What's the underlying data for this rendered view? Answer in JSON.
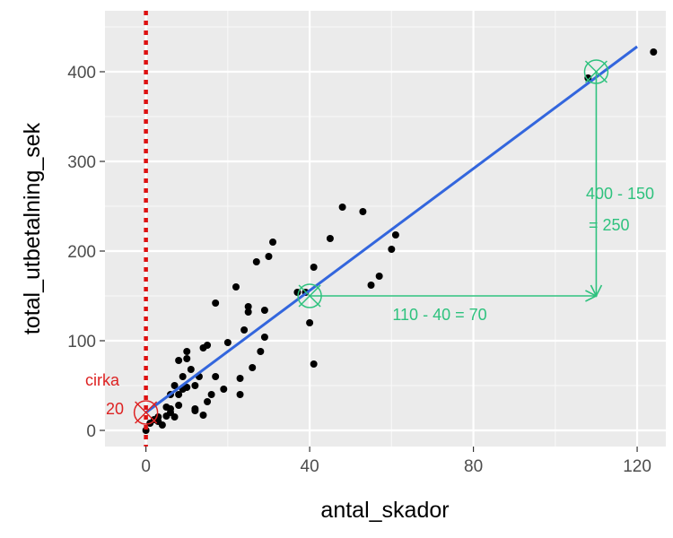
{
  "chart_data": {
    "type": "scatter",
    "xlabel": "antal_skador",
    "ylabel": "total_utbetalning_sek",
    "xlim": [
      -10,
      127
    ],
    "ylim": [
      -18,
      468
    ],
    "x_ticks": [
      0,
      40,
      80,
      120
    ],
    "x_tick_labels": [
      "0",
      "40",
      "80",
      "120"
    ],
    "y_ticks": [
      0,
      100,
      200,
      300,
      400
    ],
    "y_tick_labels": [
      "0",
      "100",
      "200",
      "300",
      "400"
    ],
    "background": "#ebebeb",
    "grid": true,
    "legend": "none",
    "points": [
      [
        0,
        0
      ],
      [
        1,
        8
      ],
      [
        2,
        12
      ],
      [
        3,
        10
      ],
      [
        3,
        15
      ],
      [
        4,
        6
      ],
      [
        5,
        16
      ],
      [
        5,
        26
      ],
      [
        6,
        20
      ],
      [
        6,
        24
      ],
      [
        6,
        40
      ],
      [
        7,
        15
      ],
      [
        7,
        50
      ],
      [
        8,
        28
      ],
      [
        8,
        40
      ],
      [
        8,
        78
      ],
      [
        9,
        46
      ],
      [
        9,
        60
      ],
      [
        10,
        48
      ],
      [
        10,
        80
      ],
      [
        10,
        88
      ],
      [
        11,
        68
      ],
      [
        12,
        22
      ],
      [
        12,
        24
      ],
      [
        12,
        50
      ],
      [
        13,
        60
      ],
      [
        14,
        92
      ],
      [
        14,
        17
      ],
      [
        15,
        32
      ],
      [
        15,
        95
      ],
      [
        16,
        40
      ],
      [
        17,
        60
      ],
      [
        17,
        142
      ],
      [
        19,
        46
      ],
      [
        20,
        98
      ],
      [
        22,
        160
      ],
      [
        23,
        40
      ],
      [
        23,
        58
      ],
      [
        24,
        112
      ],
      [
        25,
        132
      ],
      [
        25,
        138
      ],
      [
        26,
        70
      ],
      [
        27,
        188
      ],
      [
        28,
        88
      ],
      [
        29,
        104
      ],
      [
        29,
        134
      ],
      [
        30,
        194
      ],
      [
        31,
        210
      ],
      [
        37,
        154
      ],
      [
        39,
        154
      ],
      [
        40,
        120
      ],
      [
        41,
        74
      ],
      [
        41,
        182
      ],
      [
        45,
        214
      ],
      [
        48,
        249
      ],
      [
        53,
        244
      ],
      [
        55,
        162
      ],
      [
        57,
        172
      ],
      [
        60,
        202
      ],
      [
        61,
        218
      ],
      [
        108,
        393
      ],
      [
        124,
        422
      ]
    ],
    "regression_line": {
      "intercept": 20,
      "slope": 3.4,
      "x_range": [
        0,
        120
      ],
      "color": "#3366dd"
    },
    "vertical_reference": {
      "x": 0,
      "color": "#dd1111",
      "style": "dotted"
    },
    "markers": [
      {
        "x": 0,
        "y": 20,
        "color": "#dd2222"
      },
      {
        "x": 40,
        "y": 150,
        "color": "#2ec27e"
      },
      {
        "x": 110,
        "y": 400,
        "color": "#2ec27e"
      }
    ],
    "run_segment": {
      "from": [
        40,
        150
      ],
      "to": [
        110,
        150
      ],
      "label": "110 - 40 = 70",
      "color": "#2ec27e"
    },
    "rise_segment": {
      "from": [
        110,
        400
      ],
      "to": [
        110,
        150
      ],
      "label_line1": "400 - 150",
      "label_line2": "= 250",
      "color": "#2ec27e"
    },
    "intercept_annotation": {
      "line1": "cirka",
      "line2": "20",
      "color": "#dd2222"
    }
  }
}
